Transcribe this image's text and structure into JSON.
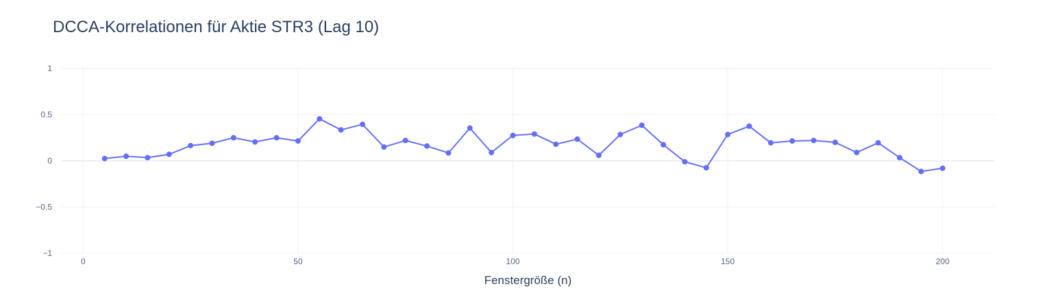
{
  "chart_data": {
    "type": "line",
    "title": "DCCA-Korrelationen für Aktie STR3 (Lag 10)",
    "xlabel": "Fenstergröße (n)",
    "ylabel": "",
    "xlim": [
      -5,
      212
    ],
    "ylim": [
      -1,
      1
    ],
    "x_ticks": [
      0,
      50,
      100,
      150,
      200
    ],
    "x_tick_labels": [
      "0",
      "50",
      "100",
      "150",
      "200"
    ],
    "y_ticks": [
      1,
      0.5,
      0,
      -0.5,
      -1
    ],
    "y_tick_labels": [
      "1",
      "0.5",
      "0",
      "−0.5",
      "−1"
    ],
    "grid": true,
    "legend": "none",
    "colors": {
      "series": "#636efa",
      "grid": "#ebf0f8",
      "zeroline": "#ebf0f8",
      "text": "#2a3f5f",
      "tick_text": "#506784"
    },
    "series": [
      {
        "x": [
          5,
          10,
          15,
          20,
          25,
          30,
          35,
          40,
          45,
          50,
          55,
          60,
          65,
          70,
          75,
          80,
          85,
          90,
          95,
          100,
          105,
          110,
          115,
          120,
          125,
          130,
          135,
          140,
          145,
          150,
          155,
          160,
          165,
          170,
          175,
          180,
          185,
          190,
          195,
          200
        ],
        "y": [
          0.025,
          0.05,
          0.035,
          0.07,
          0.165,
          0.19,
          0.25,
          0.205,
          0.25,
          0.215,
          0.455,
          0.335,
          0.395,
          0.15,
          0.22,
          0.16,
          0.085,
          0.355,
          0.09,
          0.275,
          0.29,
          0.18,
          0.235,
          0.06,
          0.285,
          0.385,
          0.175,
          -0.01,
          -0.075,
          0.285,
          0.375,
          0.195,
          0.215,
          0.22,
          0.2,
          0.09,
          0.195,
          0.035,
          -0.115,
          -0.08
        ]
      }
    ]
  }
}
